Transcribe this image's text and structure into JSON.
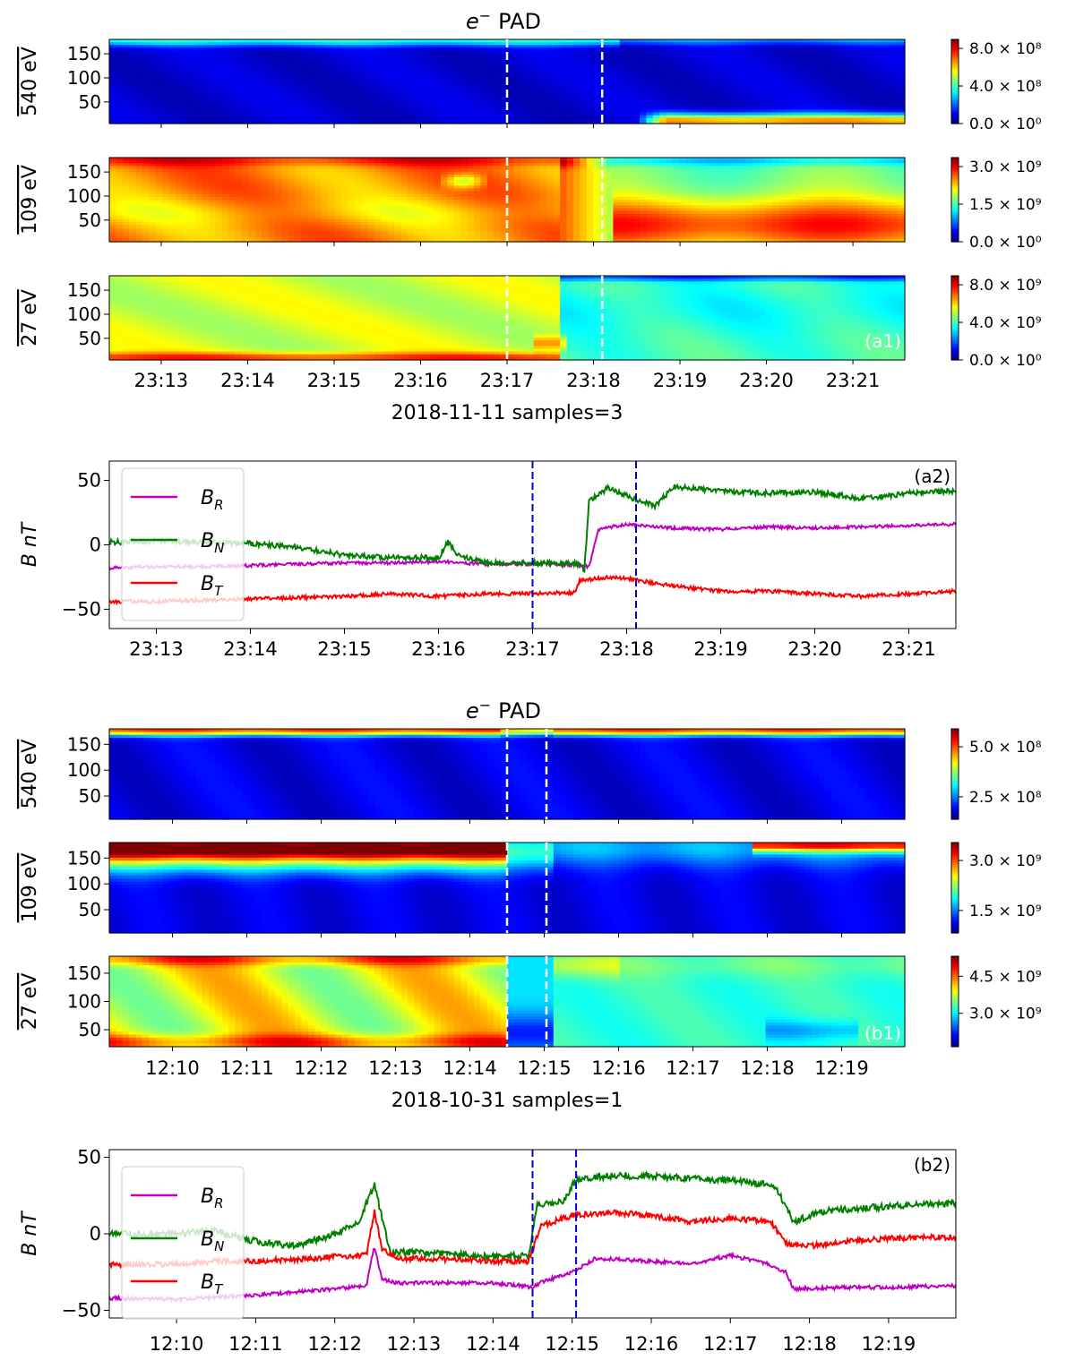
{
  "chart_data": [
    {
      "type": "heatmap",
      "id": "a1",
      "title": "e⁻ PAD",
      "title_main": "e",
      "title_sup": "−",
      "title_rest": "PAD",
      "panel_label": "(a1)",
      "xlabel": "2018-11-11 samples=3",
      "x_range_min": [
        12.4,
        21.6
      ],
      "x_ticks": [
        "23:13",
        "23:14",
        "23:15",
        "23:16",
        "23:17",
        "23:18",
        "23:19",
        "23:20",
        "23:21"
      ],
      "x_tick_min": [
        13,
        14,
        15,
        16,
        17,
        18,
        19,
        20,
        21
      ],
      "markers_min": [
        17.0,
        18.1
      ],
      "marker_color": "#ffffff",
      "rows": [
        {
          "ylabel": "540 eV",
          "yticks": [
            "150",
            "100",
            "50"
          ],
          "ytick_values": [
            150,
            100,
            50
          ],
          "ylim": [
            5,
            180
          ],
          "colorbar_ticks": [
            "8.0 × 10⁸",
            "4.0 × 10⁸",
            "0.0 × 10⁰"
          ],
          "colorbar_values": [
            800000000.0,
            400000000.0,
            0
          ],
          "description": "mostly low flux, thin enhanced band near 180°; enhancement near 0° after 23:18:30"
        },
        {
          "ylabel": "109 eV",
          "yticks": [
            "150",
            "100",
            "50"
          ],
          "ytick_values": [
            150,
            100,
            50
          ],
          "ylim": [
            5,
            180
          ],
          "colorbar_ticks": [
            "3.0 × 10⁹",
            "1.5 × 10⁹",
            "0.0 × 10⁰"
          ],
          "colorbar_values": [
            3000000000.0,
            1500000000.0,
            0
          ],
          "description": "high flux before 23:18, cyan band near 180° after, red near 0-50° after 23:18"
        },
        {
          "ylabel": "27 eV",
          "yticks": [
            "150",
            "100",
            "50"
          ],
          "ytick_values": [
            150,
            100,
            50
          ],
          "ylim": [
            5,
            180
          ],
          "colorbar_ticks": [
            "8.0 × 10⁹",
            "4.0 × 10⁹",
            "0.0 × 10⁰"
          ],
          "colorbar_values": [
            8000000000.0,
            4000000000.0,
            0
          ],
          "description": "green-yellow before 23:18, cyan after"
        }
      ]
    },
    {
      "type": "line",
      "id": "a2",
      "panel_label": "(a2)",
      "ylabel": "B nT",
      "ylim": [
        -65,
        65
      ],
      "yticks": [
        "50",
        "0",
        "−50"
      ],
      "ytick_values": [
        50,
        0,
        -50
      ],
      "x_range_min": [
        12.5,
        21.5
      ],
      "x_ticks": [
        "23:13",
        "23:14",
        "23:15",
        "23:16",
        "23:17",
        "23:18",
        "23:19",
        "23:20",
        "23:21"
      ],
      "x_tick_min": [
        13,
        14,
        15,
        16,
        17,
        18,
        19,
        20,
        21
      ],
      "markers_min": [
        17.0,
        18.1
      ],
      "marker_color": "#0000dd",
      "legend": [
        {
          "name": "B",
          "sub": "R",
          "color": "#c000c0"
        },
        {
          "name": "B",
          "sub": "N",
          "color": "#008000"
        },
        {
          "name": "B",
          "sub": "T",
          "color": "#ff0000"
        }
      ],
      "series": [
        {
          "name": "B_R",
          "color": "#c000c0",
          "seed": 11,
          "noise": 1.2,
          "x": [
            12.5,
            13.0,
            13.5,
            14.0,
            14.5,
            15.0,
            15.5,
            16.0,
            16.5,
            17.0,
            17.5,
            17.6,
            17.7,
            18.0,
            18.5,
            19.0,
            19.5,
            20.0,
            20.5,
            21.0,
            21.5
          ],
          "y": [
            -18,
            -17,
            -17,
            -16,
            -15,
            -14,
            -14,
            -13,
            -15,
            -15,
            -16,
            -17,
            12,
            16,
            13,
            12,
            14,
            13,
            14,
            15,
            16
          ]
        },
        {
          "name": "B_N",
          "color": "#008000",
          "seed": 23,
          "noise": 2.0,
          "x": [
            12.5,
            13.0,
            13.5,
            14.0,
            14.5,
            15.0,
            15.5,
            16.0,
            16.1,
            16.2,
            16.5,
            17.0,
            17.5,
            17.55,
            17.6,
            17.8,
            18.0,
            18.3,
            18.5,
            19.0,
            19.5,
            20.0,
            20.5,
            21.0,
            21.5
          ],
          "y": [
            2,
            3,
            2,
            1,
            -2,
            -8,
            -10,
            -10,
            2,
            -8,
            -14,
            -14,
            -15,
            -20,
            34,
            44,
            38,
            30,
            45,
            42,
            40,
            41,
            36,
            40,
            42
          ]
        },
        {
          "name": "B_T",
          "color": "#ff0000",
          "seed": 37,
          "noise": 1.4,
          "x": [
            12.5,
            13.0,
            13.5,
            14.0,
            14.5,
            15.0,
            15.5,
            16.0,
            16.5,
            17.0,
            17.45,
            17.5,
            17.8,
            18.0,
            18.3,
            18.5,
            19.0,
            19.5,
            20.0,
            20.5,
            21.0,
            21.5
          ],
          "y": [
            -44,
            -44,
            -43,
            -42,
            -41,
            -40,
            -38,
            -40,
            -38,
            -38,
            -37,
            -28,
            -25,
            -26,
            -30,
            -32,
            -36,
            -36,
            -38,
            -40,
            -38,
            -36
          ]
        }
      ]
    },
    {
      "type": "heatmap",
      "id": "b1",
      "title": "e⁻ PAD",
      "title_main": "e",
      "title_sup": "−",
      "title_rest": "PAD",
      "panel_label": "(b1)",
      "xlabel": "2018-10-31 samples=1",
      "x_range_min": [
        9.15,
        19.85
      ],
      "x_ticks": [
        "12:10",
        "12:11",
        "12:12",
        "12:13",
        "12:14",
        "12:15",
        "12:16",
        "12:17",
        "12:18",
        "12:19"
      ],
      "x_tick_min": [
        10,
        11,
        12,
        13,
        14,
        15,
        16,
        17,
        18,
        19
      ],
      "markers_min": [
        14.5,
        15.03
      ],
      "marker_color": "#ffffff",
      "rows": [
        {
          "ylabel": "540 eV",
          "yticks": [
            "150",
            "100",
            "50"
          ],
          "ytick_values": [
            150,
            100,
            50
          ],
          "ylim": [
            5,
            180
          ],
          "colorbar_ticks": [
            "5.0 × 10⁸",
            "2.5 × 10⁸"
          ],
          "colorbar_values": [
            500000000.0,
            250000000.0
          ],
          "description": "low flux with strahl band near 180°"
        },
        {
          "ylabel": "109 eV",
          "yticks": [
            "150",
            "100",
            "50"
          ],
          "ytick_values": [
            150,
            100,
            50
          ],
          "ylim": [
            5,
            180
          ],
          "colorbar_ticks": [
            "3.0 × 10⁹",
            "1.5 × 10⁹"
          ],
          "colorbar_values": [
            3000000000.0,
            1500000000.0
          ],
          "description": "strong band near 180° before 12:15, dark blue elsewhere"
        },
        {
          "ylabel": "27 eV",
          "yticks": [
            "150",
            "100",
            "50"
          ],
          "ytick_values": [
            150,
            100,
            50
          ],
          "ylim": [
            20,
            180
          ],
          "colorbar_ticks": [
            "4.5 × 10⁹",
            "3.0 × 10⁹"
          ],
          "colorbar_values": [
            4500000000.0,
            3000000000.0
          ],
          "description": "warm colors before 12:14.5, cooler after"
        }
      ]
    },
    {
      "type": "line",
      "id": "b2",
      "panel_label": "(b2)",
      "ylabel": "B nT",
      "ylim": [
        -55,
        55
      ],
      "yticks": [
        "50",
        "0",
        "−50"
      ],
      "ytick_values": [
        50,
        0,
        -50
      ],
      "x_range_min": [
        9.15,
        19.85
      ],
      "x_ticks": [
        "12:10",
        "12:11",
        "12:12",
        "12:13",
        "12:14",
        "12:15",
        "12:16",
        "12:17",
        "12:18",
        "12:19"
      ],
      "x_tick_min": [
        10,
        11,
        12,
        13,
        14,
        15,
        16,
        17,
        18,
        19
      ],
      "markers_min": [
        14.5,
        15.05
      ],
      "marker_color": "#0000dd",
      "legend": [
        {
          "name": "B",
          "sub": "R",
          "color": "#c000c0"
        },
        {
          "name": "B",
          "sub": "N",
          "color": "#008000"
        },
        {
          "name": "B",
          "sub": "T",
          "color": "#ff0000"
        }
      ],
      "series": [
        {
          "name": "B_R",
          "color": "#c000c0",
          "seed": 51,
          "noise": 1.2,
          "x": [
            9.15,
            10.0,
            11.0,
            11.5,
            12.0,
            12.4,
            12.5,
            12.6,
            12.8,
            13.0,
            14.0,
            14.5,
            14.6,
            15.0,
            15.3,
            16.0,
            16.5,
            17.0,
            17.5,
            17.7,
            17.8,
            18.5,
            19.0,
            19.85
          ],
          "y": [
            -42,
            -43,
            -40,
            -38,
            -36,
            -34,
            -8,
            -30,
            -32,
            -32,
            -32,
            -35,
            -32,
            -25,
            -16,
            -18,
            -20,
            -14,
            -20,
            -25,
            -36,
            -35,
            -35,
            -34
          ]
        },
        {
          "name": "B_N",
          "color": "#008000",
          "seed": 67,
          "noise": 2.2,
          "x": [
            9.15,
            10.0,
            10.5,
            11.0,
            11.5,
            12.0,
            12.3,
            12.5,
            12.6,
            12.7,
            13.0,
            14.0,
            14.45,
            14.55,
            14.9,
            15.05,
            15.5,
            16.0,
            16.5,
            17.0,
            17.5,
            17.6,
            17.8,
            18.2,
            18.5,
            19.0,
            19.85
          ],
          "y": [
            0,
            0,
            2,
            -5,
            -8,
            0,
            8,
            32,
            10,
            -12,
            -12,
            -15,
            -14,
            18,
            22,
            36,
            38,
            38,
            36,
            35,
            32,
            28,
            8,
            15,
            16,
            18,
            20
          ]
        },
        {
          "name": "B_T",
          "color": "#ff0000",
          "seed": 83,
          "noise": 1.8,
          "x": [
            9.15,
            10.0,
            10.5,
            11.0,
            11.5,
            12.0,
            12.4,
            12.5,
            12.6,
            12.8,
            13.0,
            14.0,
            14.45,
            14.6,
            15.0,
            15.5,
            16.0,
            16.5,
            17.0,
            17.5,
            17.7,
            18.0,
            18.5,
            19.0,
            19.85
          ],
          "y": [
            -20,
            -20,
            -18,
            -18,
            -17,
            -15,
            -14,
            15,
            -10,
            -16,
            -16,
            -18,
            -18,
            5,
            12,
            14,
            12,
            8,
            10,
            8,
            -6,
            -8,
            -5,
            -3,
            -2
          ]
        }
      ]
    }
  ]
}
